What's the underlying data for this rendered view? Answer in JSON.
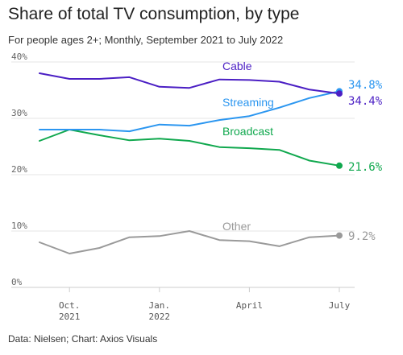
{
  "header": {
    "title": "Share of total TV consumption, by type",
    "subtitle": "For people ages 2+; Monthly, September 2021 to July 2022"
  },
  "footer": {
    "source": "Data: Nielsen; Chart: Axios Visuals"
  },
  "chart_data": {
    "type": "line",
    "title": "Share of total TV consumption, by type",
    "subtitle": "For people ages 2+; Monthly, September 2021 to July 2022",
    "x": [
      "2021-09",
      "2021-10",
      "2021-11",
      "2021-12",
      "2022-01",
      "2022-02",
      "2022-03",
      "2022-04",
      "2022-05",
      "2022-06",
      "2022-07"
    ],
    "x_tick_labels": [
      {
        "x": "2021-10",
        "lines": [
          "Oct.",
          "2021"
        ]
      },
      {
        "x": "2022-01",
        "lines": [
          "Jan.",
          "2022"
        ]
      },
      {
        "x": "2022-04",
        "lines": [
          "April"
        ]
      },
      {
        "x": "2022-07",
        "lines": [
          "July"
        ]
      }
    ],
    "y_ticks": [
      {
        "value": 0,
        "label": "0%"
      },
      {
        "value": 10,
        "label": "10%"
      },
      {
        "value": 20,
        "label": "20%"
      },
      {
        "value": 30,
        "label": "30%"
      },
      {
        "value": 40,
        "label": "40%"
      }
    ],
    "ylim": [
      0,
      40
    ],
    "grid": "horizontal",
    "series": [
      {
        "name": "Cable",
        "color": "#4b1fc4",
        "values": [
          38.0,
          37.0,
          37.0,
          37.3,
          35.6,
          35.4,
          36.9,
          36.8,
          36.5,
          35.1,
          34.4
        ],
        "end_label": "34.4%"
      },
      {
        "name": "Streaming",
        "color": "#2b96f0",
        "values": [
          28.0,
          28.0,
          28.0,
          27.7,
          28.9,
          28.7,
          29.7,
          30.4,
          31.9,
          33.6,
          34.8
        ],
        "end_label": "34.8%"
      },
      {
        "name": "Broadcast",
        "color": "#10a84e",
        "values": [
          26.0,
          28.0,
          27.0,
          26.1,
          26.4,
          26.0,
          24.9,
          24.7,
          24.4,
          22.5,
          21.6
        ],
        "end_label": "21.6%"
      },
      {
        "name": "Other",
        "color": "#9a9a9a",
        "values": [
          8.0,
          6.0,
          7.0,
          8.9,
          9.1,
          10.0,
          8.4,
          8.2,
          7.3,
          8.9,
          9.2
        ],
        "end_label": "9.2%"
      }
    ]
  }
}
